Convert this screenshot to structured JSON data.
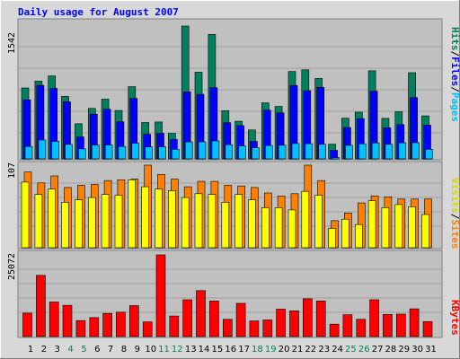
{
  "title": "Daily usage for August 2007",
  "colors": {
    "hits": "#00805c",
    "files": "#0000ff",
    "pages": "#00c0ff",
    "visits": "#ffff00",
    "sites": "#ff8000",
    "kbytes": "#ff0000",
    "panel_bg": "#c0c0c0",
    "page_bg": "#d8d8d8",
    "title": "#0000ff",
    "weekend": "#00805c"
  },
  "chart_data": [
    {
      "type": "bar",
      "panel": "top",
      "max_label": "1542",
      "ylim": [
        0,
        1542
      ],
      "legend": [
        {
          "text": "Hits",
          "color": "#00805c"
        },
        {
          "text": "Files",
          "color": "#0000ff"
        },
        {
          "text": "Pages",
          "color": "#00c0ff"
        }
      ],
      "series": [
        {
          "name": "Hits",
          "values": [
            823,
            902,
            963,
            725,
            407,
            586,
            693,
            562,
            838,
            422,
            428,
            296,
            1542,
            1006,
            1445,
            559,
            437,
            336,
            650,
            608,
            1014,
            1034,
            934,
            170,
            472,
            542,
            1022,
            470,
            546,
            1000,
            499
          ]
        },
        {
          "name": "Files",
          "values": [
            686,
            853,
            818,
            663,
            254,
            519,
            576,
            431,
            702,
            285,
            296,
            226,
            778,
            749,
            826,
            419,
            386,
            203,
            565,
            535,
            852,
            791,
            830,
            99,
            364,
            468,
            787,
            361,
            398,
            712,
            392
          ]
        },
        {
          "name": "Pages",
          "values": [
            144,
            219,
            203,
            168,
            116,
            161,
            162,
            144,
            182,
            139,
            141,
            110,
            197,
            198,
            208,
            165,
            149,
            130,
            155,
            158,
            178,
            176,
            169,
            16,
            157,
            175,
            185,
            169,
            186,
            188,
            110
          ]
        }
      ]
    },
    {
      "type": "bar",
      "panel": "middle",
      "max_label": "107",
      "ylim": [
        0,
        107
      ],
      "legend": [
        {
          "text": "Visits",
          "color": "#ffff00"
        },
        {
          "text": "Sites",
          "color": "#ff8000"
        }
      ],
      "series": [
        {
          "name": "Visits",
          "values": [
            85,
            69,
            76,
            59,
            62,
            65,
            69,
            68,
            88,
            79,
            76,
            74,
            65,
            70,
            69,
            59,
            69,
            62,
            52,
            52,
            49,
            73,
            68,
            25,
            37,
            30,
            61,
            52,
            56,
            53,
            43
          ]
        },
        {
          "name": "Sites",
          "values": [
            98,
            84,
            93,
            78,
            81,
            82,
            87,
            88,
            89,
            107,
            95,
            89,
            79,
            86,
            86,
            81,
            80,
            78,
            71,
            67,
            70,
            107,
            87,
            35,
            45,
            58,
            67,
            66,
            63,
            63,
            63
          ]
        }
      ]
    },
    {
      "type": "bar",
      "panel": "bottom",
      "max_label": "25072",
      "ylim": [
        0,
        25072
      ],
      "legend": [
        {
          "text": "KBytes",
          "color": "#ff0000"
        }
      ],
      "series": [
        {
          "name": "KBytes",
          "values": [
            7200,
            18800,
            10600,
            9600,
            4900,
            5800,
            7100,
            7500,
            9500,
            4500,
            25072,
            6300,
            11300,
            14100,
            10900,
            5300,
            10200,
            4800,
            5100,
            8400,
            7900,
            11600,
            10900,
            3800,
            6700,
            5300,
            11300,
            6800,
            6900,
            8500,
            4600
          ]
        }
      ]
    }
  ],
  "days": [
    "1",
    "2",
    "3",
    "4",
    "5",
    "6",
    "7",
    "8",
    "9",
    "10",
    "11",
    "12",
    "13",
    "14",
    "15",
    "16",
    "17",
    "18",
    "19",
    "20",
    "21",
    "22",
    "23",
    "24",
    "25",
    "26",
    "27",
    "28",
    "29",
    "30",
    "31"
  ],
  "weekend_days": [
    4,
    5,
    11,
    12,
    18,
    19,
    25,
    26
  ]
}
